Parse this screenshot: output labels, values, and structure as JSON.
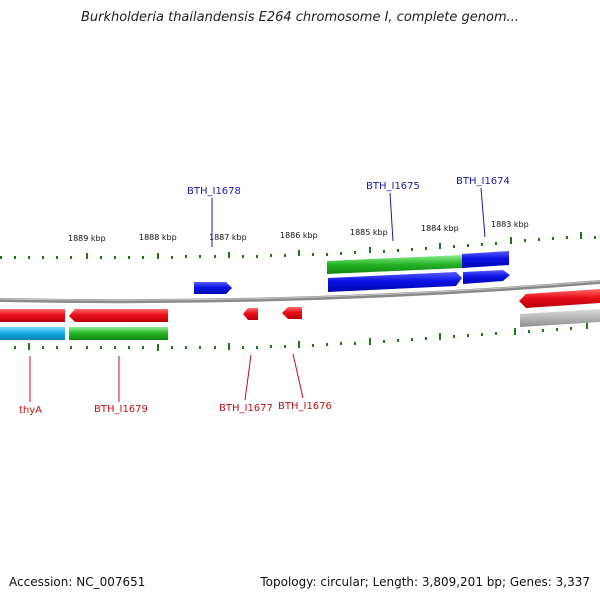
{
  "header": {
    "title": "Burkholderia thailandensis E264 chromosome I, complete genom..."
  },
  "footer": {
    "accession": "Accession: NC_007651",
    "summary": "Topology: circular; Length: 3,809,201 bp; Genes: 3,337"
  },
  "ruler": {
    "ticks": [
      "1889 kbp",
      "1888 kbp",
      "1887 kbp",
      "1886 kbp",
      "1885 kbp",
      "1884 kbp",
      "1883 kbp"
    ]
  },
  "genes": {
    "forward": [
      "BTH_I1678",
      "BTH_I1675",
      "BTH_I1674"
    ],
    "reverse": [
      "thyA",
      "BTH_I1679",
      "BTH_I1677",
      "BTH_I1676"
    ]
  },
  "colors": {
    "forward_label": "#1a1aa6",
    "reverse_label": "#c0101a",
    "forward_gene": "#0b12e6",
    "reverse_gene": "#e8101a",
    "cds_green": "#23b323",
    "cds_cyan": "#16a9e0",
    "backbone": "#8a8a8a",
    "tick": "#1a7a1a"
  }
}
